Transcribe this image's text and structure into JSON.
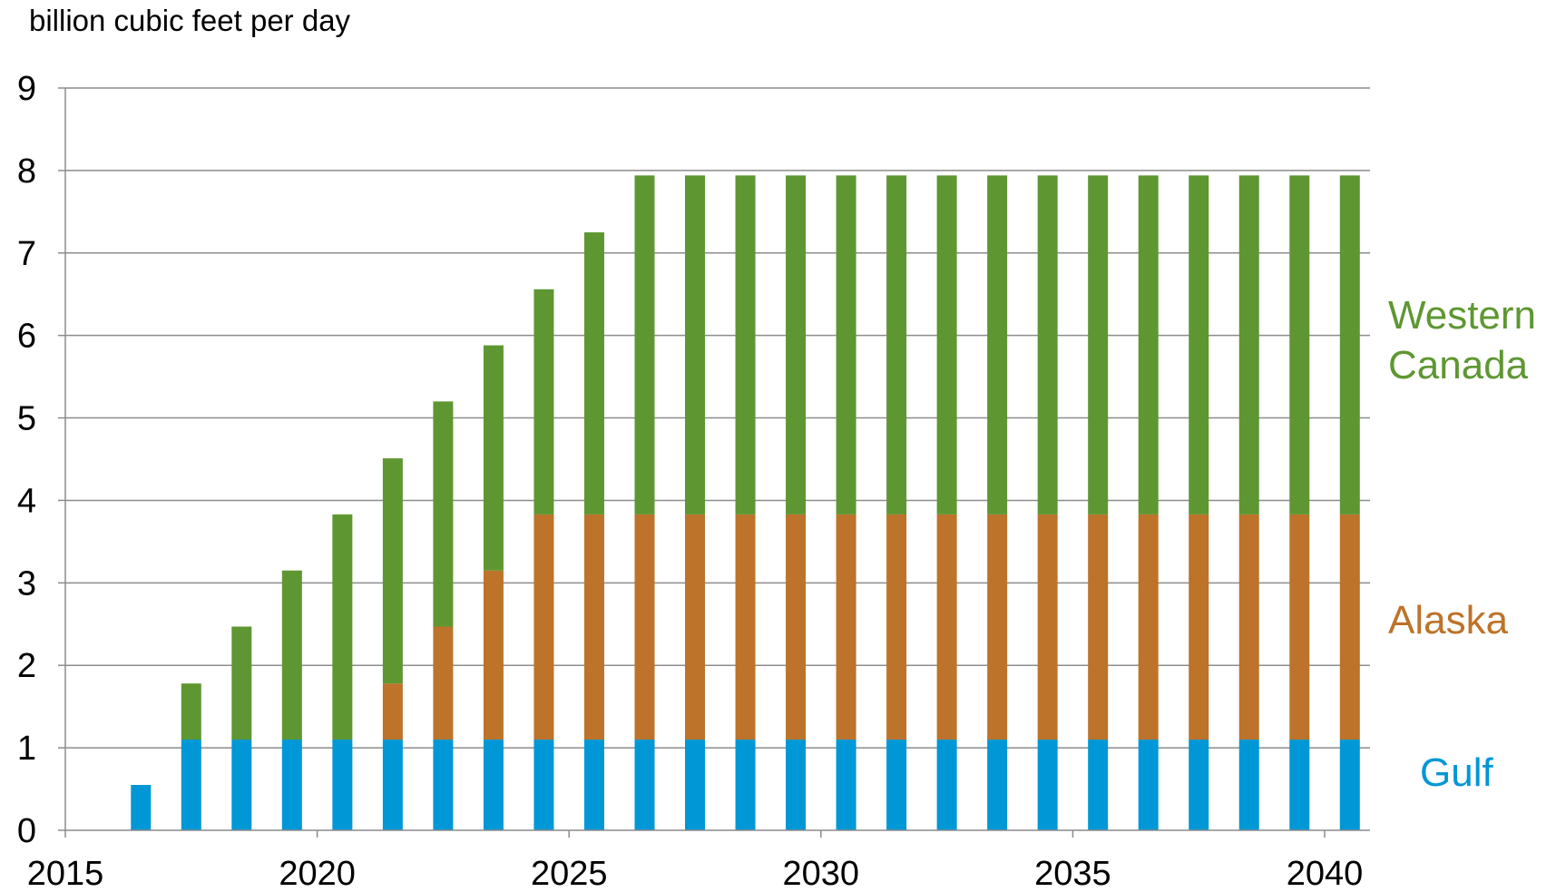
{
  "chart_data": {
    "type": "bar",
    "stacked": true,
    "ylabel": "billion cubic feet per day",
    "ylim": [
      0,
      9
    ],
    "yticks": [
      0,
      1,
      2,
      3,
      4,
      5,
      6,
      7,
      8,
      9
    ],
    "xlim": [
      2015,
      2040.9
    ],
    "xticks": [
      2015,
      2020,
      2025,
      2030,
      2035,
      2040
    ],
    "grid": true,
    "legend": "inline-right",
    "x": [
      2016,
      2017,
      2018,
      2019,
      2020,
      2021,
      2022,
      2023,
      2024,
      2025,
      2026,
      2027,
      2028,
      2029,
      2030,
      2031,
      2032,
      2033,
      2034,
      2035,
      2036,
      2037,
      2038,
      2039,
      2040
    ],
    "series": [
      {
        "name": "Gulf",
        "color": "#0097d6",
        "values": [
          0.55,
          1.1,
          1.1,
          1.1,
          1.1,
          1.1,
          1.1,
          1.1,
          1.1,
          1.1,
          1.1,
          1.1,
          1.1,
          1.1,
          1.1,
          1.1,
          1.1,
          1.1,
          1.1,
          1.1,
          1.1,
          1.1,
          1.1,
          1.1,
          1.1
        ]
      },
      {
        "name": "Alaska",
        "color": "#bd732a",
        "values": [
          0,
          0,
          0,
          0,
          0,
          0.68,
          1.37,
          2.05,
          2.73,
          2.73,
          2.73,
          2.73,
          2.73,
          2.73,
          2.73,
          2.73,
          2.73,
          2.73,
          2.73,
          2.73,
          2.73,
          2.73,
          2.73,
          2.73,
          2.73
        ]
      },
      {
        "name": "Western Canada",
        "color": "#5e9732",
        "values": [
          0,
          0.68,
          1.37,
          2.05,
          2.73,
          2.73,
          2.73,
          2.73,
          2.73,
          3.42,
          4.11,
          4.11,
          4.11,
          4.11,
          4.11,
          4.11,
          4.11,
          4.11,
          4.11,
          4.11,
          4.11,
          4.11,
          4.11,
          4.11,
          4.11
        ]
      }
    ],
    "series_labels": [
      {
        "lines": [
          "Western",
          "Canada"
        ],
        "color": "#5e9732"
      },
      {
        "lines": [
          "Alaska"
        ],
        "color": "#bd732a"
      },
      {
        "lines": [
          "Gulf"
        ],
        "color": "#0097d6"
      }
    ]
  }
}
